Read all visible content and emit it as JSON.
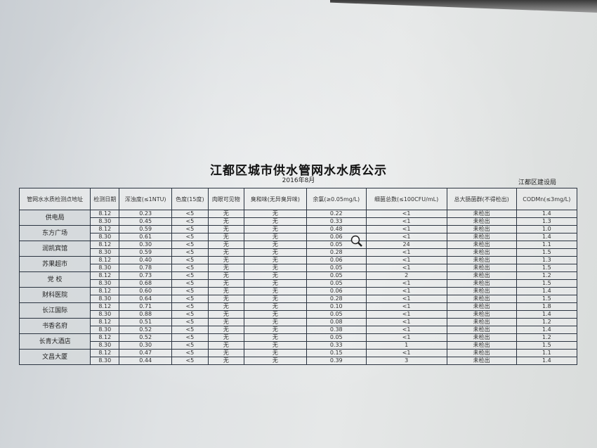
{
  "title": "江都区城市供水管网水水质公示",
  "subtitle": "2016年8月",
  "org": "江都区建设局",
  "headers": [
    "管网水水质检测点地址",
    "检测日期",
    "浑浊度(≤1NTU)",
    "色度(15度)",
    "肉眼可见物",
    "臭和味(无异臭异味)",
    "余氯(≥0.05mg/L)",
    "细菌总数(≤100CFU/mL)",
    "总大肠菌群(不得检出)",
    "CODMn(≤3mg/L)"
  ],
  "sites": [
    {
      "name": "供电局",
      "rows": [
        [
          "8.12",
          "0.23",
          "<5",
          "无",
          "无",
          "0.22",
          "<1",
          "未检出",
          "1.4"
        ],
        [
          "8.30",
          "0.45",
          "<5",
          "无",
          "无",
          "0.33",
          "<1",
          "未检出",
          "1.3"
        ]
      ]
    },
    {
      "name": "东方广场",
      "rows": [
        [
          "8.12",
          "0.59",
          "<5",
          "无",
          "无",
          "0.48",
          "<1",
          "未检出",
          "1.0"
        ],
        [
          "8.30",
          "0.61",
          "<5",
          "无",
          "无",
          "0.06",
          "<1",
          "未检出",
          "1.4"
        ]
      ]
    },
    {
      "name": "润凯宾馆",
      "rows": [
        [
          "8.12",
          "0.30",
          "<5",
          "无",
          "无",
          "0.05",
          "24",
          "未检出",
          "1.1"
        ],
        [
          "8.30",
          "0.59",
          "<5",
          "无",
          "无",
          "0.28",
          "<1",
          "未检出",
          "1.5"
        ]
      ]
    },
    {
      "name": "苏果超市",
      "rows": [
        [
          "8.12",
          "0.40",
          "<5",
          "无",
          "无",
          "0.06",
          "<1",
          "未检出",
          "1.3"
        ],
        [
          "8.30",
          "0.78",
          "<5",
          "无",
          "无",
          "0.05",
          "<1",
          "未检出",
          "1.5"
        ]
      ]
    },
    {
      "name": "党 校",
      "rows": [
        [
          "8.12",
          "0.73",
          "<5",
          "无",
          "无",
          "0.05",
          "2",
          "未检出",
          "1.2"
        ],
        [
          "8.30",
          "0.68",
          "<5",
          "无",
          "无",
          "0.05",
          "<1",
          "未检出",
          "1.5"
        ]
      ]
    },
    {
      "name": "财科医院",
      "rows": [
        [
          "8.12",
          "0.60",
          "<5",
          "无",
          "无",
          "0.06",
          "<1",
          "未检出",
          "1.4"
        ],
        [
          "8.30",
          "0.64",
          "<5",
          "无",
          "无",
          "0.28",
          "<1",
          "未检出",
          "1.5"
        ]
      ]
    },
    {
      "name": "长江国际",
      "rows": [
        [
          "8.12",
          "0.71",
          "<5",
          "无",
          "无",
          "0.10",
          "<1",
          "未检出",
          "1.8"
        ],
        [
          "8.30",
          "0.88",
          "<5",
          "无",
          "无",
          "0.05",
          "<1",
          "未检出",
          "1.4"
        ]
      ]
    },
    {
      "name": "书香名府",
      "rows": [
        [
          "8.12",
          "0.51",
          "<5",
          "无",
          "无",
          "0.08",
          "<1",
          "未检出",
          "1.2"
        ],
        [
          "8.30",
          "0.52",
          "<5",
          "无",
          "无",
          "0.38",
          "<1",
          "未检出",
          "1.4"
        ]
      ]
    },
    {
      "name": "长青大酒店",
      "rows": [
        [
          "8.12",
          "0.52",
          "<5",
          "无",
          "无",
          "0.05",
          "<1",
          "未检出",
          "1.2"
        ],
        [
          "8.30",
          "0.30",
          "<5",
          "无",
          "无",
          "0.33",
          "1",
          "未检出",
          "1.5"
        ]
      ]
    },
    {
      "name": "文昌大厦",
      "rows": [
        [
          "8.12",
          "0.47",
          "<5",
          "无",
          "无",
          "0.15",
          "<1",
          "未检出",
          "1.1"
        ],
        [
          "8.30",
          "0.44",
          "<5",
          "无",
          "无",
          "0.39",
          "3",
          "未检出",
          "1.4"
        ]
      ]
    }
  ]
}
